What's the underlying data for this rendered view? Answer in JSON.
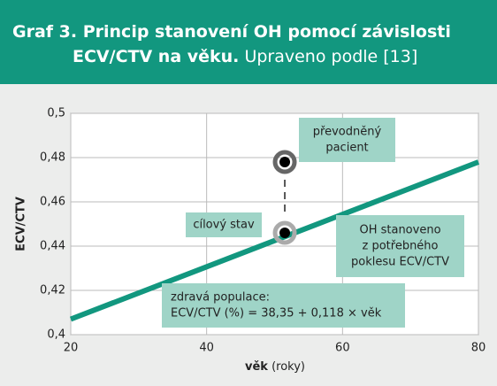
{
  "chart_data": {
    "type": "line",
    "title_lines": [
      "Graf 3. Princip stanovení OH pomocí závislosti",
      "ECV/CTV na věku."
    ],
    "subtitle": "Upraveno podle [13]",
    "x_label_bold": "věk",
    "x_label": "(roky)",
    "y_label": "ECV/CTV",
    "xlim": [
      20,
      80
    ],
    "xticks": [
      20,
      40,
      60,
      80
    ],
    "ylim": [
      0.4,
      0.5
    ],
    "yticks": [
      {
        "value": 0.4,
        "label": "0,4"
      },
      {
        "value": 0.42,
        "label": "0,42"
      },
      {
        "value": 0.44,
        "label": "0,44"
      },
      {
        "value": 0.46,
        "label": "0,46"
      },
      {
        "value": 0.48,
        "label": "0,48"
      },
      {
        "value": 0.5,
        "label": "0,5"
      }
    ],
    "grid": true,
    "series": [
      {
        "name": "zdravá populace",
        "color": "#12977f",
        "x": [
          20,
          80
        ],
        "values": [
          0.407,
          0.478
        ]
      }
    ],
    "points": {
      "x": [
        51.5,
        51.5
      ],
      "values": [
        0.478,
        0.446
      ]
    },
    "annotations": [
      {
        "lines": [
          "převodněný",
          "pacient"
        ]
      },
      {
        "lines": [
          "cílový stav"
        ]
      },
      {
        "lines": [
          "OH stanoveno",
          "z potřebného",
          "poklesu ECV/CTV"
        ]
      },
      {
        "lines": [
          "zdravá populace:",
          "ECV/CTV (%) = 38,35 + 0,118 × věk"
        ]
      }
    ]
  }
}
